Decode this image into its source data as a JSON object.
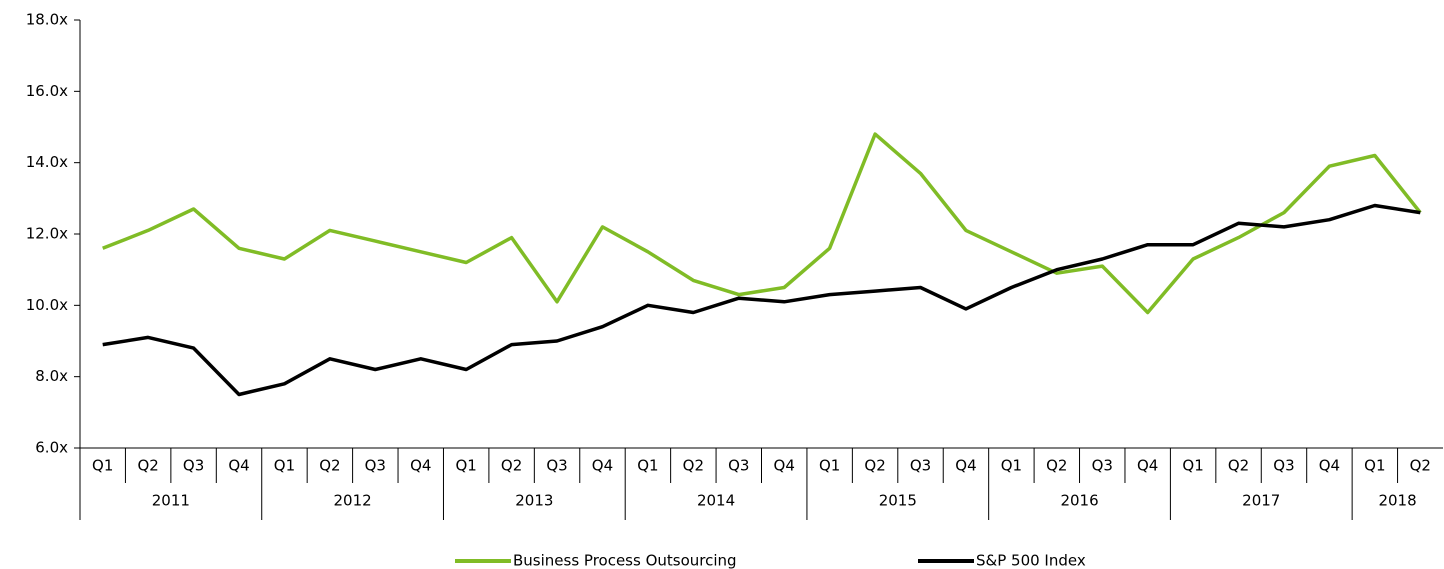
{
  "chart_data": {
    "type": "line",
    "categories": [
      "Q1",
      "Q2",
      "Q3",
      "Q4",
      "Q1",
      "Q2",
      "Q3",
      "Q4",
      "Q1",
      "Q2",
      "Q3",
      "Q4",
      "Q1",
      "Q2",
      "Q3",
      "Q4",
      "Q1",
      "Q2",
      "Q3",
      "Q4",
      "Q1",
      "Q2",
      "Q3",
      "Q4",
      "Q1",
      "Q2",
      "Q3",
      "Q4",
      "Q1",
      "Q2"
    ],
    "groups": [
      {
        "label": "2011",
        "count": 4
      },
      {
        "label": "2012",
        "count": 4
      },
      {
        "label": "2013",
        "count": 4
      },
      {
        "label": "2014",
        "count": 4
      },
      {
        "label": "2015",
        "count": 4
      },
      {
        "label": "2016",
        "count": 4
      },
      {
        "label": "2017",
        "count": 4
      },
      {
        "label": "2018",
        "count": 2
      }
    ],
    "series": [
      {
        "name": "Business Process Outsourcing",
        "color": "#80bc26",
        "values": [
          11.6,
          12.1,
          12.7,
          11.6,
          11.3,
          12.1,
          11.8,
          11.5,
          11.2,
          11.9,
          10.1,
          12.2,
          11.5,
          10.7,
          10.3,
          10.5,
          11.6,
          14.8,
          13.7,
          12.1,
          11.5,
          10.9,
          11.1,
          9.8,
          11.3,
          11.9,
          12.6,
          13.9,
          14.2,
          12.6
        ]
      },
      {
        "name": "S&P 500 Index",
        "color": "#000000",
        "values": [
          8.9,
          9.1,
          8.8,
          7.5,
          7.8,
          8.5,
          8.2,
          8.5,
          8.2,
          8.9,
          9.0,
          9.4,
          10.0,
          9.8,
          10.2,
          10.1,
          10.3,
          10.4,
          10.5,
          9.9,
          10.5,
          11.0,
          11.3,
          11.7,
          11.7,
          12.3,
          12.2,
          12.4,
          12.8,
          12.6
        ]
      }
    ],
    "ylim": [
      6,
      18
    ],
    "yticks": [
      {
        "value": 6,
        "label": "6.0x"
      },
      {
        "value": 8,
        "label": "8.0x"
      },
      {
        "value": 10,
        "label": "10.0x"
      },
      {
        "value": 12,
        "label": "12.0x"
      },
      {
        "value": 14,
        "label": "14.0x"
      },
      {
        "value": 16,
        "label": "16.0x"
      },
      {
        "value": 18,
        "label": "18.0x"
      }
    ],
    "legend": "bottom"
  }
}
